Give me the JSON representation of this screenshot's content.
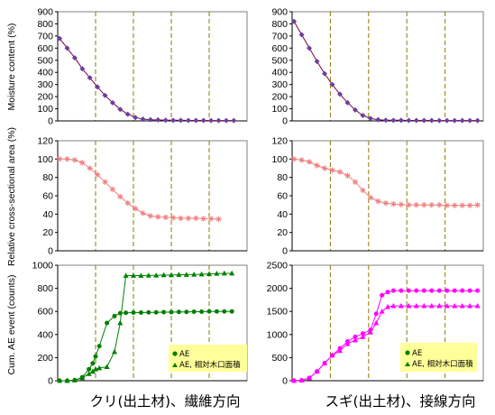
{
  "colors": {
    "moisture_series": "#800040",
    "moisture_marker": "#6a3fa0",
    "area_series": "#f08080",
    "ae_green": "#008000",
    "ae_magenta": "#ff00ff",
    "stage_line": "#8b7a00",
    "legend_bg": "#ffff99"
  },
  "captions": {
    "left": "クリ(出土材)、繊維方向",
    "right": "スギ(出土材)、接線方向"
  },
  "y_labels": {
    "moisture": "Moisture content (%)",
    "area": "Relative cross-sectional area (%)",
    "ae": "Cum. AE event (counts)"
  },
  "legend": {
    "ae": "AE",
    "ae_area": "AE, 相対木口面積"
  },
  "chart_data": [
    {
      "id": "kuri-moisture",
      "type": "line",
      "xlim": [
        0,
        1
      ],
      "ylim": [
        0,
        900
      ],
      "yticks": [
        0,
        100,
        200,
        300,
        400,
        500,
        600,
        700,
        800,
        900
      ],
      "stages": [
        0.2,
        0.4,
        0.6,
        0.8
      ],
      "series": [
        {
          "color_key": "moisture_series",
          "marker": "diamond",
          "x": [
            0.01,
            0.05,
            0.09,
            0.13,
            0.17,
            0.21,
            0.25,
            0.29,
            0.33,
            0.37,
            0.41,
            0.45,
            0.49,
            0.53,
            0.57,
            0.61,
            0.65,
            0.69,
            0.73,
            0.77,
            0.81,
            0.85,
            0.89,
            0.93
          ],
          "y": [
            680,
            600,
            520,
            430,
            355,
            280,
            210,
            150,
            95,
            55,
            28,
            15,
            10,
            8,
            6,
            5,
            5,
            4,
            4,
            4,
            3,
            3,
            3,
            3
          ]
        }
      ]
    },
    {
      "id": "sugi-moisture",
      "type": "line",
      "xlim": [
        0,
        1
      ],
      "ylim": [
        0,
        900
      ],
      "yticks": [
        0,
        100,
        200,
        300,
        400,
        500,
        600,
        700,
        800,
        900
      ],
      "stages": [
        0.2,
        0.4,
        0.6,
        0.8
      ],
      "series": [
        {
          "color_key": "moisture_series",
          "marker": "diamond",
          "x": [
            0.01,
            0.05,
            0.09,
            0.13,
            0.17,
            0.21,
            0.25,
            0.29,
            0.33,
            0.37,
            0.41,
            0.45,
            0.49,
            0.53,
            0.57,
            0.61,
            0.65,
            0.69,
            0.73,
            0.77,
            0.81,
            0.85,
            0.89,
            0.93,
            0.97
          ],
          "y": [
            820,
            710,
            600,
            490,
            390,
            300,
            220,
            150,
            90,
            45,
            20,
            10,
            6,
            5,
            5,
            4,
            4,
            4,
            4,
            3,
            3,
            3,
            3,
            3,
            3
          ]
        }
      ]
    },
    {
      "id": "kuri-area",
      "type": "line",
      "xlim": [
        0,
        1
      ],
      "ylim": [
        0,
        120
      ],
      "yticks": [
        0,
        20,
        40,
        60,
        80,
        100,
        120
      ],
      "stages": [
        0.2,
        0.4,
        0.6,
        0.8
      ],
      "series": [
        {
          "color_key": "area_series",
          "marker": "star",
          "x": [
            0.01,
            0.05,
            0.09,
            0.13,
            0.17,
            0.21,
            0.25,
            0.29,
            0.33,
            0.37,
            0.41,
            0.45,
            0.49,
            0.53,
            0.57,
            0.61,
            0.65,
            0.69,
            0.73,
            0.77,
            0.81,
            0.85
          ],
          "y": [
            100,
            100,
            99,
            96,
            90,
            83,
            75,
            67,
            59,
            52,
            46,
            41,
            38,
            37,
            36.5,
            36,
            35.5,
            35.5,
            35.5,
            35,
            35,
            34.5
          ]
        }
      ]
    },
    {
      "id": "sugi-area",
      "type": "line",
      "xlim": [
        0,
        1
      ],
      "ylim": [
        0,
        120
      ],
      "yticks": [
        0,
        20,
        40,
        60,
        80,
        100,
        120
      ],
      "stages": [
        0.2,
        0.4,
        0.6,
        0.8
      ],
      "series": [
        {
          "color_key": "area_series",
          "marker": "star",
          "x": [
            0.01,
            0.05,
            0.09,
            0.13,
            0.17,
            0.21,
            0.25,
            0.29,
            0.33,
            0.37,
            0.41,
            0.45,
            0.49,
            0.53,
            0.57,
            0.61,
            0.65,
            0.69,
            0.73,
            0.77,
            0.81,
            0.85,
            0.89,
            0.93,
            0.97
          ],
          "y": [
            100,
            99,
            97,
            93,
            90,
            88,
            86,
            82,
            75,
            66,
            58,
            54,
            52,
            51,
            50.5,
            50,
            50,
            50,
            50,
            50,
            49.5,
            49.5,
            49.5,
            49.5,
            50
          ]
        }
      ]
    },
    {
      "id": "kuri-ae",
      "type": "line",
      "xlim": [
        0,
        1
      ],
      "ylim": [
        0,
        1000
      ],
      "yticks": [
        0,
        200,
        400,
        600,
        800,
        1000
      ],
      "stages": [
        0.2,
        0.4,
        0.6,
        0.8
      ],
      "legend_position": "bottom-right",
      "series": [
        {
          "name_key": "legend.ae",
          "color_key": "ae_green",
          "marker": "circle",
          "x": [
            0.01,
            0.05,
            0.09,
            0.13,
            0.165,
            0.185,
            0.2,
            0.22,
            0.26,
            0.3,
            0.33,
            0.36,
            0.4,
            0.44,
            0.48,
            0.52,
            0.56,
            0.6,
            0.64,
            0.68,
            0.72,
            0.76,
            0.8,
            0.84,
            0.88,
            0.92
          ],
          "y": [
            0,
            0,
            5,
            30,
            100,
            150,
            210,
            300,
            500,
            560,
            585,
            588,
            590,
            590,
            592,
            592,
            594,
            594,
            596,
            596,
            598,
            598,
            600,
            600,
            600,
            600
          ]
        },
        {
          "name_key": "legend.ae_area",
          "color_key": "ae_green",
          "marker": "triangle",
          "x": [
            0.01,
            0.05,
            0.09,
            0.13,
            0.165,
            0.185,
            0.2,
            0.22,
            0.26,
            0.3,
            0.33,
            0.36,
            0.4,
            0.44,
            0.48,
            0.52,
            0.56,
            0.6,
            0.64,
            0.68,
            0.72,
            0.76,
            0.8,
            0.84,
            0.88,
            0.92
          ],
          "y": [
            0,
            0,
            5,
            25,
            60,
            80,
            100,
            110,
            120,
            250,
            500,
            910,
            910,
            910,
            912,
            912,
            915,
            915,
            918,
            918,
            920,
            922,
            925,
            928,
            930,
            930
          ]
        }
      ]
    },
    {
      "id": "sugi-ae",
      "type": "line",
      "xlim": [
        0,
        1
      ],
      "ylim": [
        0,
        2500
      ],
      "yticks": [
        0,
        500,
        1000,
        1500,
        2000,
        2500
      ],
      "stages": [
        0.2,
        0.4,
        0.6,
        0.8
      ],
      "legend_position": "bottom-right",
      "series": [
        {
          "name_key": "legend.ae",
          "color_key": "ae_magenta",
          "marker": "circle",
          "x": [
            0.01,
            0.05,
            0.09,
            0.13,
            0.17,
            0.21,
            0.25,
            0.29,
            0.33,
            0.37,
            0.41,
            0.44,
            0.47,
            0.5,
            0.53,
            0.57,
            0.61,
            0.65,
            0.69,
            0.73,
            0.77,
            0.81,
            0.85,
            0.89,
            0.93,
            0.97
          ],
          "y": [
            0,
            10,
            60,
            200,
            380,
            550,
            700,
            850,
            950,
            1020,
            1100,
            1450,
            1850,
            1920,
            1950,
            1950,
            1950,
            1950,
            1950,
            1950,
            1950,
            1950,
            1950,
            1950,
            1950,
            1950
          ]
        },
        {
          "name_key": "legend.ae_area",
          "color_key": "ae_magenta",
          "marker": "triangle",
          "x": [
            0.01,
            0.05,
            0.09,
            0.13,
            0.17,
            0.21,
            0.25,
            0.29,
            0.33,
            0.37,
            0.41,
            0.44,
            0.47,
            0.5,
            0.53,
            0.57,
            0.61,
            0.65,
            0.69,
            0.73,
            0.77,
            0.81,
            0.85,
            0.89,
            0.93,
            0.97
          ],
          "y": [
            0,
            10,
            60,
            200,
            380,
            550,
            650,
            800,
            880,
            950,
            1050,
            1250,
            1500,
            1600,
            1620,
            1620,
            1620,
            1620,
            1620,
            1620,
            1620,
            1620,
            1620,
            1620,
            1620,
            1620
          ]
        }
      ]
    }
  ]
}
